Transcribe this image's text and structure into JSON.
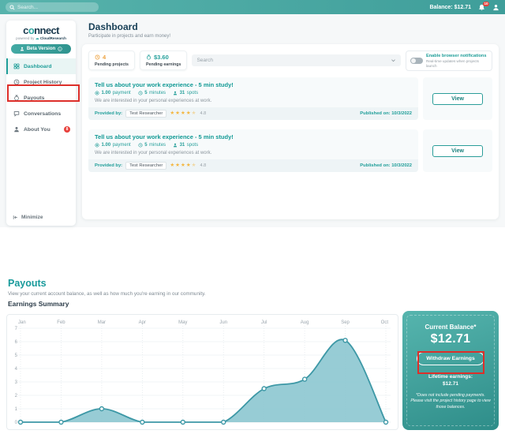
{
  "topbar": {
    "search_placeholder": "Search...",
    "balance": "Balance: $12.71",
    "notification_count": "10"
  },
  "sidebar": {
    "logo_part1": "c",
    "logo_o": "o",
    "logo_part2": "nnect",
    "powered_by": "powered by",
    "brand": "CloudResearch",
    "beta_label": "Beta Version",
    "items": [
      {
        "label": "Dashboard"
      },
      {
        "label": "Project History"
      },
      {
        "label": "Payouts"
      },
      {
        "label": "Conversations"
      },
      {
        "label": "About You",
        "badge": "8"
      }
    ],
    "minimize": "Minimize"
  },
  "dashboard": {
    "title": "Dashboard",
    "subtitle": "Participate in projects and earn money!",
    "stats": [
      {
        "value": "4",
        "label": "Pending projects"
      },
      {
        "value": "$3.60",
        "label": "Pending earnings"
      }
    ],
    "filter_placeholder": "Search",
    "toggle_title": "Enable browser notifications",
    "toggle_subtitle": "Real-time updates when projects launch",
    "studies": [
      {
        "title": "Tell us about your work experience - 5 min study!",
        "payment_value": "1.00",
        "payment_label": "payment",
        "duration_value": "5",
        "duration_label": "minutes",
        "spots_value": "31",
        "spots_label": "spots",
        "description": "We are interested in your personal experiences at work.",
        "provided_by": "Provided by:",
        "provider": "Test Researcher",
        "rating": "4.8",
        "published": "Published on: 10/3/2022",
        "view": "View"
      },
      {
        "title": "Tell us about your work experience - 5 min study!",
        "payment_value": "1.00",
        "payment_label": "payment",
        "duration_value": "5",
        "duration_label": "minutes",
        "spots_value": "31",
        "spots_label": "spots",
        "description": "We are interested in your personal experiences at work.",
        "provided_by": "Provided by:",
        "provider": "Test Researcher",
        "rating": "4.8",
        "published": "Published on: 10/3/2022",
        "view": "View"
      }
    ]
  },
  "payouts": {
    "title": "Payouts",
    "subtitle": "View your current account balance, as well as how much you're earning in our community.",
    "section_title": "Earnings Summary",
    "card": {
      "title": "Current Balance*",
      "amount": "$12.71",
      "withdraw": "Withdraw Earnings",
      "lifetime_label": "Lifetime earnings:",
      "lifetime_amount": "$12.71",
      "disclaimer": "*Does not include pending payments. Please visit the project history page to view those balances."
    }
  },
  "chart_data": {
    "type": "area",
    "title": "Earnings Summary",
    "categories": [
      "Jan",
      "Feb",
      "Mar",
      "Apr",
      "May",
      "Jun",
      "Jul",
      "Aug",
      "Sep",
      "Oct"
    ],
    "values": [
      0,
      0,
      1,
      0,
      0,
      0,
      2.5,
      3.2,
      6.1,
      0
    ],
    "xlabel": "",
    "ylabel": "",
    "ylim": [
      0,
      7
    ],
    "yticks": [
      0,
      1,
      2,
      3,
      4,
      5,
      6,
      7
    ],
    "x_axis_position": "top",
    "grid": true,
    "legend_position": "none",
    "fill_color": "#8cc7d0",
    "line_color": "#3d98a6"
  },
  "colors": {
    "accent": "#1f9e99",
    "topbar_gradient_start": "#57b3ac",
    "topbar_gradient_end": "#3f9e9a",
    "annotation_red": "#dd2f2a",
    "star_gold": "#f4b63f",
    "pending_orange": "#eda23f"
  }
}
